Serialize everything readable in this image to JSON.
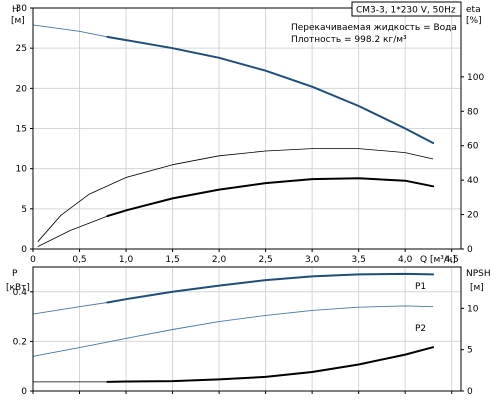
{
  "chart_data": [
    {
      "type": "line",
      "title": "CM3-3, 1*230 V, 50Hz",
      "info": [
        "Перекачиваемая жидкость = Вода",
        "Плотность = 998.2 кг/м³"
      ],
      "xlabel": "Q [м³/ч]",
      "ylabel_left": [
        "H",
        "[м]"
      ],
      "ylabel_right": [
        "eta",
        "[%]"
      ],
      "xlim": [
        0,
        4.6
      ],
      "ylim_left": [
        0,
        30
      ],
      "ylim_right": [
        0,
        140
      ],
      "x_ticks": [
        "0",
        "0,5",
        "1,0",
        "1,5",
        "2,0",
        "2,5",
        "3,0",
        "3,5",
        "4,0",
        "4,5"
      ],
      "y_ticks_left": [
        "0",
        "5",
        "10",
        "15",
        "20",
        "25",
        "30"
      ],
      "y_ticks_right": [
        "0",
        "20",
        "40",
        "60",
        "80",
        "100"
      ],
      "grid": true,
      "series": [
        {
          "name": "",
          "axis": "left",
          "x": [
            0,
            0.5,
            0.8,
            1.0,
            1.5,
            2.0,
            2.5,
            3.0,
            3.5,
            4.0,
            4.3
          ],
          "y": [
            27.9,
            27.1,
            26.4,
            26.0,
            25.0,
            23.8,
            22.2,
            20.2,
            17.8,
            15.0,
            13.2
          ],
          "color": "#1f4e79",
          "highlight_from": 0.8
        },
        {
          "name": "",
          "axis": "left",
          "x": [
            0.05,
            0.3,
            0.6,
            1.0,
            1.5,
            2.0,
            2.5,
            3.0,
            3.5,
            4.0,
            4.3
          ],
          "y": [
            0.9,
            4.2,
            6.8,
            8.9,
            10.5,
            11.6,
            12.2,
            12.5,
            12.5,
            12.0,
            11.2
          ],
          "color": "#000000",
          "highlight_from": null
        },
        {
          "name": "",
          "axis": "left",
          "x": [
            0.05,
            0.4,
            0.8,
            1.0,
            1.5,
            2.0,
            2.5,
            3.0,
            3.5,
            4.0,
            4.3
          ],
          "y": [
            0.3,
            2.3,
            4.1,
            4.8,
            6.3,
            7.4,
            8.2,
            8.7,
            8.8,
            8.5,
            7.8
          ],
          "color": "#000000",
          "highlight_from": 0.8
        }
      ]
    },
    {
      "type": "line",
      "xlim": [
        0,
        4.6
      ],
      "ylabel_left": [
        "P",
        "[кВт]"
      ],
      "ylabel_right": [
        "NPSH",
        "[м]"
      ],
      "ylim_left": [
        0,
        0.5
      ],
      "ylim_right": [
        0,
        15
      ],
      "y_ticks_left": [
        "0",
        "0.2",
        "0.4"
      ],
      "y_ticks_right": [
        "0",
        "5",
        "10"
      ],
      "grid": true,
      "series": [
        {
          "name": "P1",
          "axis": "left",
          "x": [
            0,
            0.5,
            0.8,
            1.0,
            1.5,
            2.0,
            2.5,
            3.0,
            3.5,
            4.0,
            4.3
          ],
          "y": [
            0.31,
            0.34,
            0.357,
            0.37,
            0.4,
            0.425,
            0.447,
            0.462,
            0.47,
            0.472,
            0.47
          ],
          "color": "#1f4e79",
          "highlight_from": 0.8
        },
        {
          "name": "P2",
          "axis": "left",
          "x": [
            0,
            0.5,
            1.0,
            1.5,
            2.0,
            2.5,
            3.0,
            3.5,
            4.0,
            4.3
          ],
          "y": [
            0.14,
            0.175,
            0.212,
            0.248,
            0.28,
            0.305,
            0.325,
            0.338,
            0.343,
            0.34
          ],
          "color": "#1f4e79",
          "highlight_from": null
        },
        {
          "name": "",
          "axis": "right",
          "x": [
            0,
            0.8,
            1.0,
            1.5,
            2.0,
            2.5,
            3.0,
            3.5,
            4.0,
            4.3
          ],
          "y": [
            1.1,
            1.1,
            1.15,
            1.2,
            1.4,
            1.7,
            2.3,
            3.2,
            4.4,
            5.3
          ],
          "color": "#000000",
          "highlight_from": 0.8
        }
      ]
    }
  ]
}
